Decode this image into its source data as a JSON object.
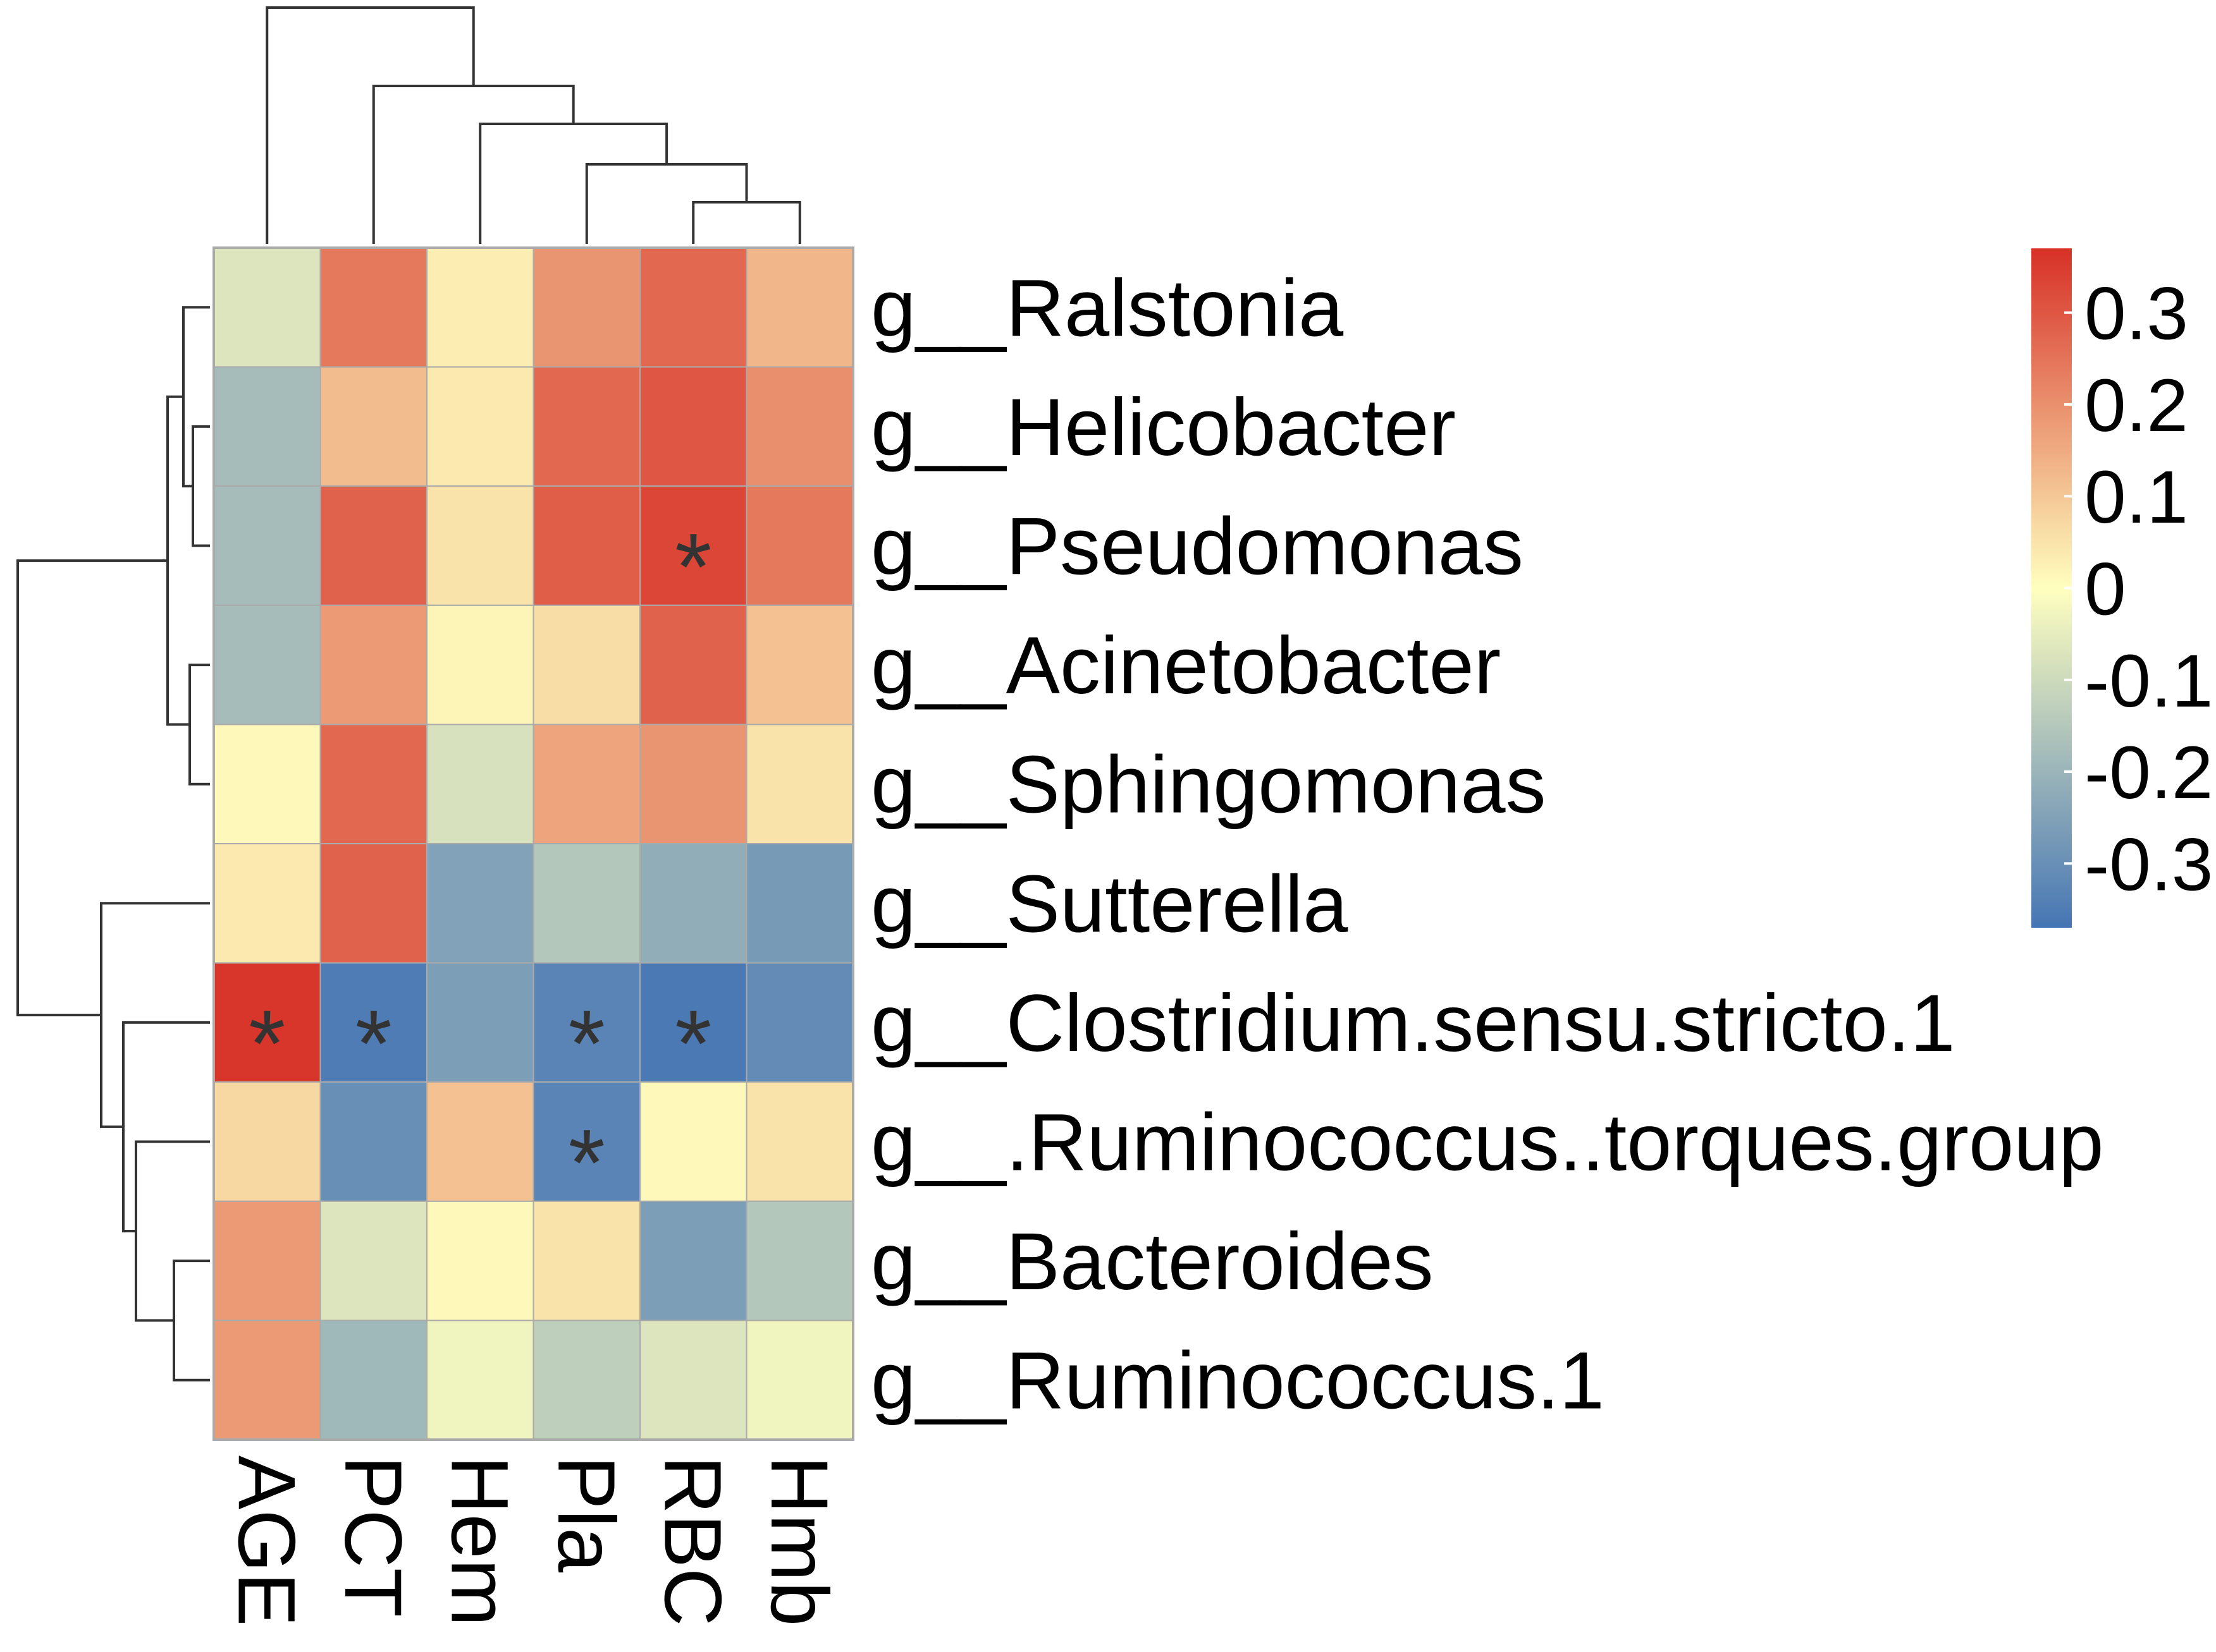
{
  "chart_data": {
    "type": "heatmap",
    "title": "",
    "columns": [
      "AGE",
      "PCT",
      "Hem",
      "Pla",
      "RBC",
      "Hmb"
    ],
    "rows": [
      "g__Ralstonia",
      "g__Helicobacter",
      "g__Pseudomonas",
      "g__Acinetobacter",
      "g__Sphingomonas",
      "g__Sutterella",
      "g__Clostridium.sensu.stricto.1",
      "g__.Ruminococcus..torques.group",
      "g__Bacteroides",
      "g__Ruminococcus.1"
    ],
    "values": [
      [
        -0.07,
        0.24,
        0.03,
        0.19,
        0.27,
        0.13
      ],
      [
        -0.18,
        0.12,
        0.04,
        0.27,
        0.3,
        0.2
      ],
      [
        -0.18,
        0.28,
        0.05,
        0.29,
        0.33,
        0.24
      ],
      [
        -0.18,
        0.18,
        0.02,
        0.06,
        0.28,
        0.11
      ],
      [
        0.01,
        0.27,
        -0.08,
        0.16,
        0.19,
        0.05
      ],
      [
        0.04,
        0.28,
        -0.25,
        -0.15,
        -0.22,
        -0.27
      ],
      [
        0.36,
        -0.35,
        -0.26,
        -0.33,
        -0.36,
        -0.31
      ],
      [
        0.07,
        -0.3,
        0.11,
        -0.33,
        0.01,
        0.05
      ],
      [
        0.18,
        -0.07,
        0.01,
        0.05,
        -0.26,
        -0.15
      ],
      [
        0.18,
        -0.19,
        -0.03,
        -0.13,
        -0.07,
        -0.03
      ]
    ],
    "significant": [
      [
        false,
        false,
        false,
        false,
        false,
        false
      ],
      [
        false,
        false,
        false,
        false,
        false,
        false
      ],
      [
        false,
        false,
        false,
        false,
        true,
        false
      ],
      [
        false,
        false,
        false,
        false,
        false,
        false
      ],
      [
        false,
        false,
        false,
        false,
        false,
        false
      ],
      [
        false,
        false,
        false,
        false,
        false,
        false
      ],
      [
        true,
        true,
        false,
        true,
        true,
        false
      ],
      [
        false,
        false,
        false,
        true,
        false,
        false
      ],
      [
        false,
        false,
        false,
        false,
        false,
        false
      ],
      [
        false,
        false,
        false,
        false,
        false,
        false
      ]
    ],
    "significance_marker": "*",
    "color_range": [
      -0.37,
      0.37
    ],
    "colors": {
      "low": "#4575b4",
      "mid": "#ffffbf",
      "high": "#d73027"
    },
    "legend": {
      "placement": "right",
      "ticks": [
        0.3,
        0.2,
        0.1,
        0,
        -0.1,
        -0.2,
        -0.3
      ],
      "tick_labels": [
        "0.3",
        "0.2",
        "0.1",
        "0",
        "-0.1",
        "-0.2",
        "-0.3"
      ]
    },
    "row_dendrogram": true,
    "column_dendrogram": true
  }
}
